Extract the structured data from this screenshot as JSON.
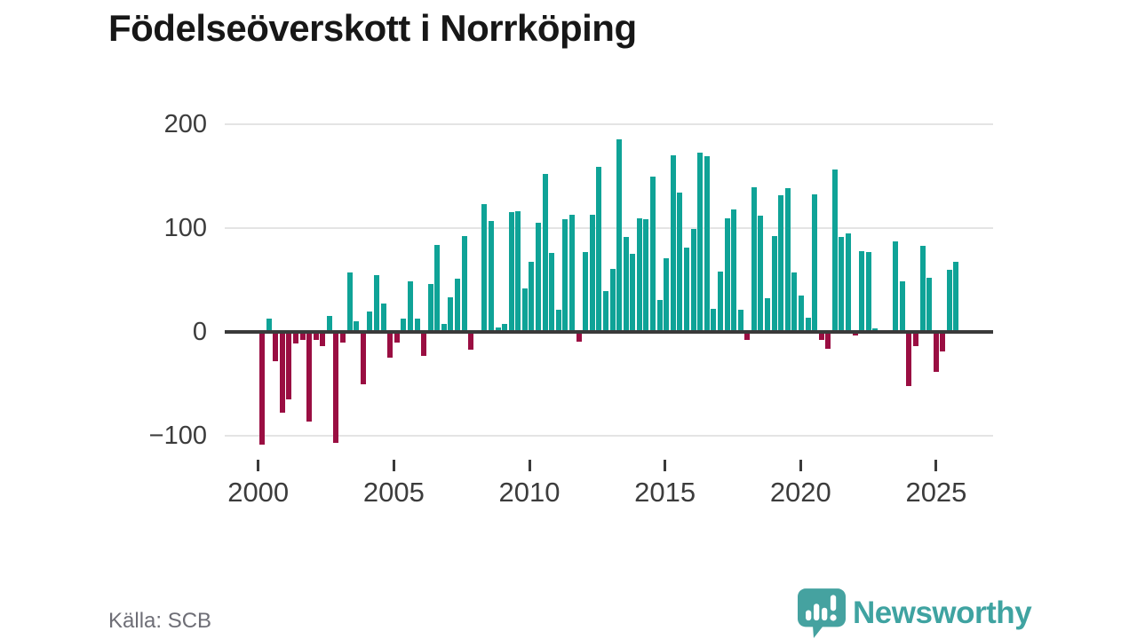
{
  "title": "Födelseöverskott i Norrköping",
  "source": "Källa: SCB",
  "logo": {
    "text": "Newsworthy",
    "color": "#3fa3a1"
  },
  "chart_data": {
    "type": "bar",
    "title": "Födelseöverskott i Norrköping",
    "frequency": "quarterly",
    "x_start": "2000-Q1",
    "x_end": "2025-Q4",
    "values": [
      -108,
      13,
      -28,
      -78,
      -65,
      -11,
      -8,
      -86,
      -8,
      -14,
      15,
      -107,
      -10,
      57,
      10,
      -50,
      20,
      55,
      27,
      -25,
      -10,
      13,
      49,
      13,
      -23,
      46,
      84,
      8,
      33,
      51,
      92,
      -17,
      2,
      123,
      107,
      4,
      8,
      115,
      116,
      42,
      67,
      105,
      152,
      76,
      21,
      108,
      113,
      -9,
      77,
      113,
      159,
      39,
      61,
      185,
      91,
      75,
      109,
      108,
      149,
      31,
      71,
      170,
      134,
      81,
      99,
      172,
      169,
      22,
      58,
      109,
      118,
      21,
      -8,
      139,
      112,
      32,
      92,
      131,
      138,
      57,
      35,
      14,
      132,
      -8,
      -16,
      156,
      91,
      95,
      -3,
      78,
      77,
      3,
      0,
      0,
      87,
      49,
      -52,
      -14,
      83,
      52,
      -38,
      -19,
      60,
      67
    ],
    "y_ticks": [
      200,
      100,
      0,
      -100
    ],
    "y_tick_labels": [
      "200",
      "100",
      "0",
      "−100"
    ],
    "x_tick_years": [
      2000,
      2005,
      2010,
      2015,
      2020,
      2025
    ],
    "x_tick_labels": [
      "2000",
      "2005",
      "2010",
      "2015",
      "2020",
      "2025"
    ],
    "ylim": [
      -130,
      210
    ],
    "grid": true,
    "legend": false,
    "positive_color": "#0fa397",
    "negative_color": "#9a0e42",
    "zero_line_color": "#3a3a3a",
    "grid_color": "#e4e4e4"
  }
}
